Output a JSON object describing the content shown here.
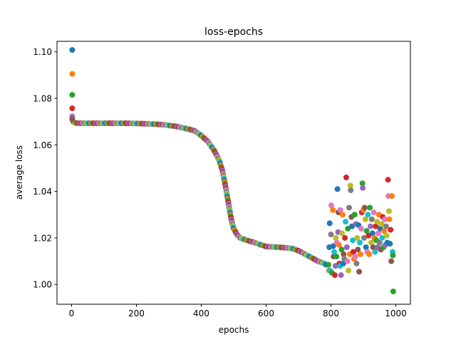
{
  "chart_data": {
    "type": "scatter",
    "title": "loss-epochs",
    "xlabel": "epochs",
    "ylabel": "average loss",
    "xlim": [
      -45,
      1045
    ],
    "ylim": [
      0.9915,
      1.1045
    ],
    "xticks": [
      0,
      200,
      400,
      600,
      800,
      1000
    ],
    "yticks": [
      1.0,
      1.02,
      1.04,
      1.06,
      1.08,
      1.1
    ],
    "ytick_labels": [
      "1.00",
      "1.02",
      "1.04",
      "1.06",
      "1.08",
      "1.10"
    ],
    "grid": false,
    "legend": "none",
    "colors": [
      "#1f77b4",
      "#ff7f0e",
      "#2ca02c",
      "#d62728",
      "#9467bd",
      "#8c564b",
      "#e377c2",
      "#7f7f7f",
      "#bcbd22",
      "#17becf"
    ],
    "curve": [
      [
        5,
        1.07
      ],
      [
        10,
        1.0695
      ],
      [
        20,
        1.0693
      ],
      [
        40,
        1.0693
      ],
      [
        80,
        1.0693
      ],
      [
        120,
        1.0693
      ],
      [
        160,
        1.0693
      ],
      [
        200,
        1.0692
      ],
      [
        240,
        1.069
      ],
      [
        280,
        1.0687
      ],
      [
        320,
        1.068
      ],
      [
        360,
        1.0668
      ],
      [
        380,
        1.066
      ],
      [
        400,
        1.064
      ],
      [
        420,
        1.0615
      ],
      [
        440,
        1.0575
      ],
      [
        455,
        1.0535
      ],
      [
        465,
        1.049
      ],
      [
        475,
        1.042
      ],
      [
        485,
        1.034
      ],
      [
        490,
        1.03
      ],
      [
        495,
        1.0265
      ],
      [
        500,
        1.024
      ],
      [
        510,
        1.0215
      ],
      [
        520,
        1.02
      ],
      [
        540,
        1.019
      ],
      [
        560,
        1.0182
      ],
      [
        580,
        1.0172
      ],
      [
        600,
        1.0163
      ],
      [
        640,
        1.016
      ],
      [
        680,
        1.0155
      ],
      [
        700,
        1.0145
      ],
      [
        720,
        1.013
      ],
      [
        740,
        1.0115
      ],
      [
        760,
        1.01
      ],
      [
        780,
        1.009
      ],
      [
        790,
        1.008
      ]
    ],
    "points": [
      [
        2,
        1.1008,
        0
      ],
      [
        2,
        1.0905,
        1
      ],
      [
        2,
        1.0815,
        2
      ],
      [
        2,
        1.0757,
        3
      ],
      [
        2,
        1.0722,
        4
      ],
      [
        2,
        1.071,
        5
      ],
      [
        792,
        1.0085,
        2
      ],
      [
        794,
        1.006,
        1
      ],
      [
        795,
        1.016,
        0
      ],
      [
        796,
        1.0263,
        0
      ],
      [
        797,
        1.006,
        9
      ],
      [
        800,
        1.0215,
        7
      ],
      [
        801,
        1.034,
        6
      ],
      [
        803,
        1.005,
        2
      ],
      [
        806,
        1.032,
        1
      ],
      [
        807,
        1.0165,
        0
      ],
      [
        808,
        1.012,
        5
      ],
      [
        810,
        1.014,
        9
      ],
      [
        812,
        1.004,
        3
      ],
      [
        814,
        1.008,
        4
      ],
      [
        815,
        1.02,
        8
      ],
      [
        817,
        1.012,
        2
      ],
      [
        818,
        1.018,
        6
      ],
      [
        820,
        1.041,
        0
      ],
      [
        822,
        1.0225,
        4
      ],
      [
        823,
        1.031,
        5
      ],
      [
        825,
        1.017,
        1
      ],
      [
        826,
        1.009,
        3
      ],
      [
        828,
        1.008,
        9
      ],
      [
        829,
        1.032,
        6
      ],
      [
        831,
        1.004,
        4
      ],
      [
        833,
        1.015,
        2
      ],
      [
        834,
        1.022,
        8
      ],
      [
        836,
        1.03,
        1
      ],
      [
        838,
        1.009,
        0
      ],
      [
        839,
        1.013,
        5
      ],
      [
        841,
        1.011,
        7
      ],
      [
        843,
        1.02,
        3
      ],
      [
        845,
        1.027,
        9
      ],
      [
        847,
        1.046,
        3
      ],
      [
        849,
        1.016,
        4
      ],
      [
        851,
        1.01,
        6
      ],
      [
        852,
        1.024,
        2
      ],
      [
        854,
        1.006,
        8
      ],
      [
        856,
        1.033,
        7
      ],
      [
        858,
        1.013,
        1
      ],
      [
        860,
        1.0425,
        8
      ],
      [
        861,
        1.0405,
        7
      ],
      [
        863,
        1.029,
        5
      ],
      [
        865,
        1.025,
        0
      ],
      [
        867,
        1.019,
        9
      ],
      [
        869,
        1.014,
        3
      ],
      [
        871,
        1.011,
        1
      ],
      [
        873,
        1.03,
        2
      ],
      [
        875,
        1.012,
        6
      ],
      [
        877,
        1.026,
        4
      ],
      [
        879,
        1.009,
        7
      ],
      [
        881,
        1.02,
        8
      ],
      [
        883,
        1.015,
        5
      ],
      [
        885,
        1.0255,
        0
      ],
      [
        887,
        1.0055,
        5
      ],
      [
        889,
        1.018,
        9
      ],
      [
        891,
        1.013,
        1
      ],
      [
        893,
        1.024,
        6
      ],
      [
        895,
        1.031,
        3
      ],
      [
        897,
        1.0435,
        2
      ],
      [
        898,
        1.0415,
        4
      ],
      [
        900,
        1.032,
        1
      ],
      [
        902,
        1.02,
        7
      ],
      [
        904,
        1.033,
        5
      ],
      [
        906,
        1.028,
        8
      ],
      [
        908,
        1.016,
        0
      ],
      [
        910,
        1.023,
        2
      ],
      [
        912,
        1.014,
        6
      ],
      [
        914,
        1.03,
        9
      ],
      [
        916,
        1.021,
        3
      ],
      [
        918,
        1.013,
        1
      ],
      [
        920,
        1.033,
        2
      ],
      [
        922,
        1.025,
        4
      ],
      [
        924,
        1.018,
        8
      ],
      [
        926,
        1.028,
        7
      ],
      [
        928,
        1.022,
        0
      ],
      [
        930,
        1.016,
        5
      ],
      [
        932,
        1.031,
        6
      ],
      [
        934,
        1.02,
        1
      ],
      [
        936,
        1.014,
        9
      ],
      [
        938,
        1.025,
        3
      ],
      [
        940,
        1.019,
        2
      ],
      [
        942,
        1.027,
        8
      ],
      [
        944,
        1.016,
        4
      ],
      [
        946,
        1.022,
        6
      ],
      [
        948,
        1.03,
        1
      ],
      [
        950,
        1.018,
        7
      ],
      [
        952,
        1.024,
        0
      ],
      [
        954,
        1.015,
        5
      ],
      [
        956,
        1.026,
        8
      ],
      [
        958,
        1.02,
        9
      ],
      [
        960,
        1.029,
        3
      ],
      [
        962,
        1.016,
        2
      ],
      [
        964,
        1.023,
        1
      ],
      [
        966,
        1.028,
        6
      ],
      [
        968,
        1.017,
        4
      ],
      [
        970,
        1.025,
        7
      ],
      [
        972,
        1.021,
        8
      ],
      [
        974,
        1.018,
        0
      ],
      [
        976,
        1.045,
        3
      ],
      [
        977,
        1.038,
        6
      ],
      [
        979,
        1.0315,
        8
      ],
      [
        980,
        1.028,
        1
      ],
      [
        982,
        1.0175,
        0
      ],
      [
        984,
        1.0235,
        3
      ],
      [
        986,
        1.01,
        5
      ],
      [
        988,
        1.038,
        1
      ],
      [
        990,
        1.014,
        9
      ],
      [
        991,
        1.0125,
        2
      ],
      [
        992,
        0.997,
        2
      ]
    ]
  }
}
